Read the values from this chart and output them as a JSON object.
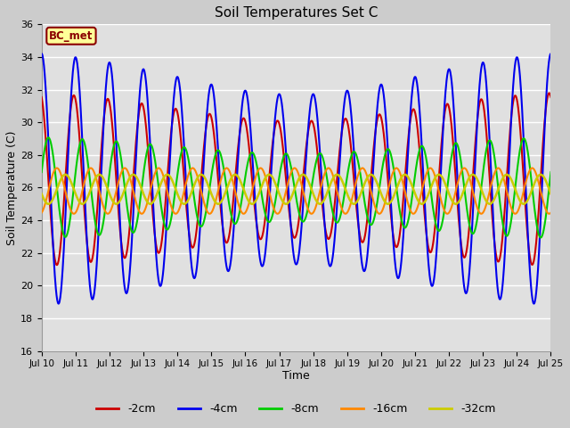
{
  "title": "Soil Temperatures Set C",
  "xlabel": "Time",
  "ylabel": "Soil Temperature (C)",
  "ylim": [
    16,
    36
  ],
  "annotation_text": "BC_met",
  "annotation_bg": "#FFFF99",
  "annotation_border": "#8B0000",
  "colors": [
    "#CC0000",
    "#0000EE",
    "#00CC00",
    "#FF8800",
    "#CCCC00"
  ],
  "labels": [
    "-2cm",
    "-4cm",
    "-8cm",
    "-16cm",
    "-32cm"
  ],
  "tick_labels": [
    "Jul 10",
    "Jul 11",
    "Jul 12",
    "Jul 13",
    "Jul 14",
    "Jul 15",
    "Jul 16",
    "Jul 17",
    "Jul 18",
    "Jul 19",
    "Jul 20",
    "Jul 21",
    "Jul 22",
    "Jul 23",
    "Jul 24",
    "Jul 25"
  ],
  "yticks": [
    16,
    18,
    20,
    22,
    24,
    26,
    28,
    30,
    32,
    34,
    36
  ],
  "num_days": 15
}
